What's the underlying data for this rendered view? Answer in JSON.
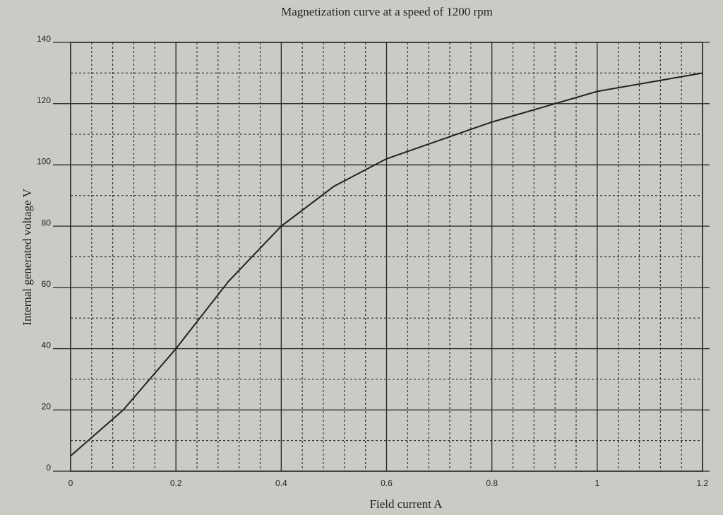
{
  "chart_data": {
    "type": "line",
    "title": "Magnetization curve at a speed of 1200 rpm",
    "x_label": "Field current  A",
    "y_label": "Internal generated voltage  V",
    "x": [
      0,
      0.1,
      0.2,
      0.3,
      0.4,
      0.5,
      0.6,
      0.7,
      0.8,
      0.9,
      1.0,
      1.1,
      1.2
    ],
    "series": [
      {
        "color": "#222222",
        "values": [
          5,
          20,
          40,
          62,
          80,
          93,
          102,
          108,
          114,
          119,
          124,
          127,
          130
        ]
      }
    ],
    "xlim": [
      0,
      1.2
    ],
    "xticks": [
      0,
      0.2,
      0.4,
      0.6,
      0.8,
      1,
      1.2
    ],
    "ylim": [
      0,
      140
    ],
    "yticks": [
      0,
      20,
      40,
      60,
      80,
      100,
      120,
      140
    ],
    "grid": true
  }
}
